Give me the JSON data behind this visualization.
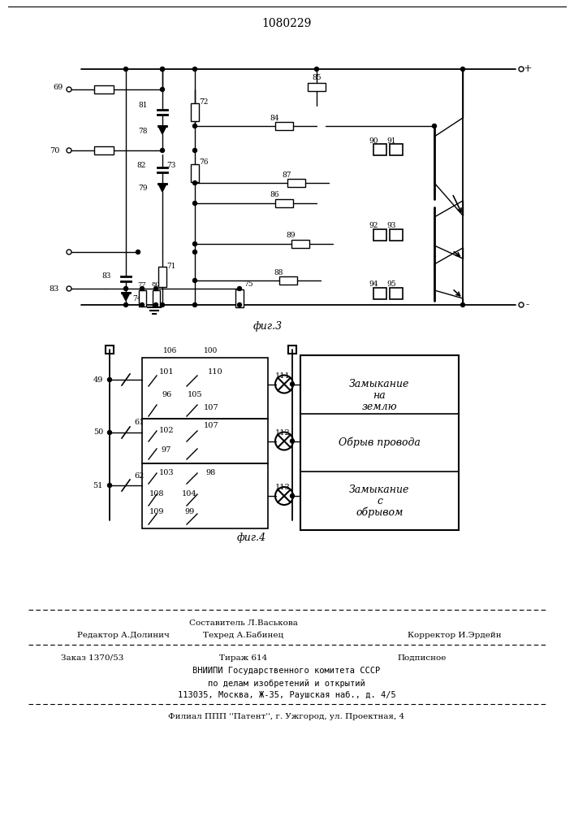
{
  "patent_number": "1080229",
  "fig3_caption": "фиг.3",
  "fig4_caption": "фиг.4",
  "label1_line1": "Замыкание",
  "label1_line2": "на",
  "label1_line3": "землю",
  "label2": "Обрыв провода",
  "label3_line1": "Замыкание",
  "label3_line2": "с",
  "label3_line3": "обрывом",
  "footer_line1": "Составитель Л.Васькова",
  "footer_editor": "Редактор А.Долинич",
  "footer_tech": "Техред А.Бабинец",
  "footer_corrector": "Корректор И.Эрдейн",
  "footer_order": "Заказ 1370/53",
  "footer_tirazh": "Тираж 614",
  "footer_podpisnoe": "Подписное",
  "footer_vniipи": "ВНИИПИ Государственного комитета СССР",
  "footer_po_delam": "по делам изобретений и открытий",
  "footer_address": "113035, Москва, Ж-35, Раушская наб., д. 4/5",
  "footer_filial": "Филиал ППП ''Патент'', г. Ужгород, ул. Проектная, 4",
  "bg_color": "#ffffff",
  "line_color": "#000000"
}
